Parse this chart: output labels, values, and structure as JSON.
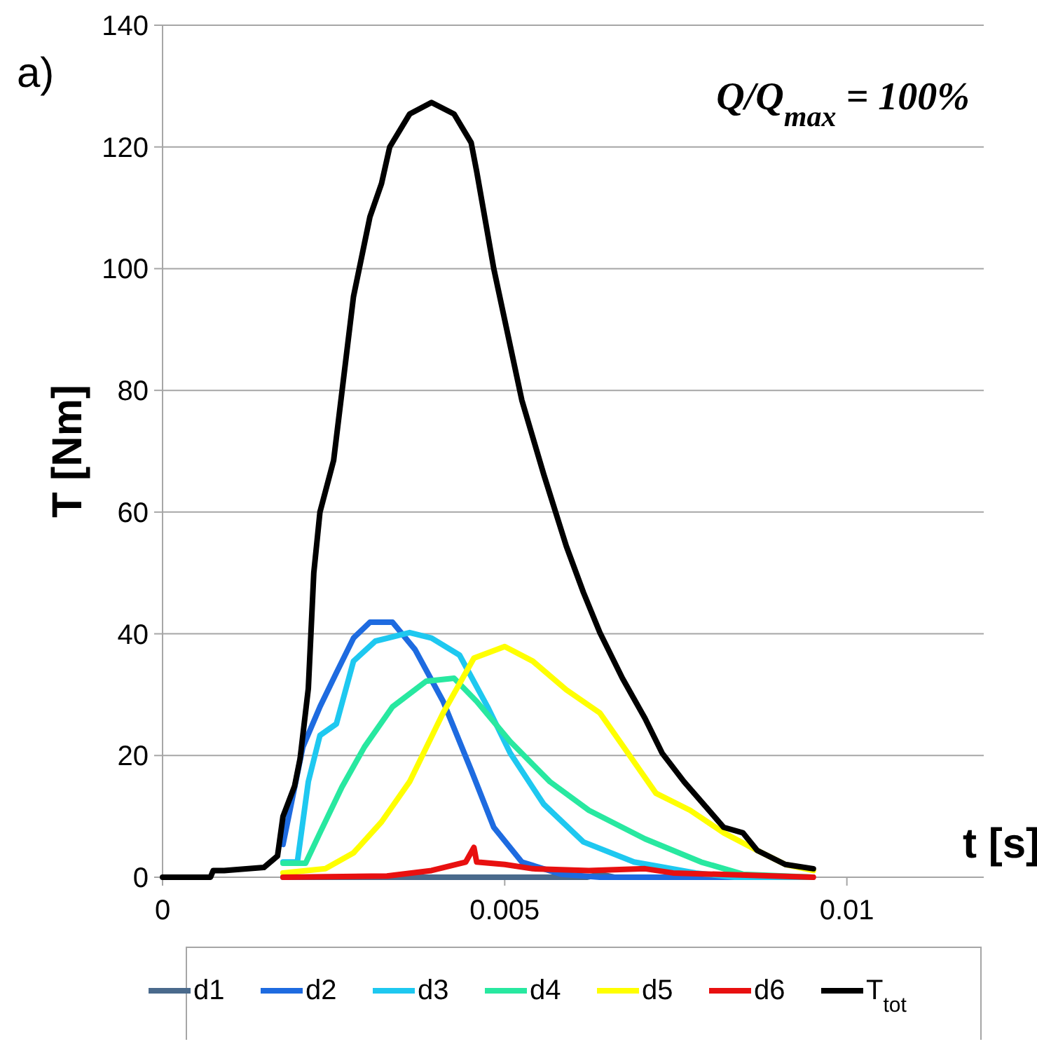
{
  "chart_data": {
    "type": "line",
    "xlabel": "t [s]",
    "ylabel": "T  [Nm]",
    "xlim": [
      0,
      0.012
    ],
    "xticks": [
      0,
      0.005,
      0.01
    ],
    "ylim": [
      0,
      140
    ],
    "yticks": [
      0,
      20,
      40,
      60,
      80,
      100,
      120,
      140
    ],
    "grid": "y",
    "legend": "bottom",
    "line_style": "solid",
    "marker": "none",
    "annotations": [
      "a)",
      "Q/Q$_{max}$ = 100%"
    ],
    "series": [
      {
        "name": "d1",
        "color": "#4a6a8c",
        "x": [
          0.00176,
          0.005,
          0.0062,
          0.0064,
          0.0066,
          0.0095
        ],
        "values": [
          0,
          0,
          0,
          0.5,
          0,
          0
        ]
      },
      {
        "name": "d2",
        "color": "#1e6be0",
        "x": [
          0.00176,
          0.00205,
          0.0023,
          0.00254,
          0.00279,
          0.00303,
          0.00336,
          0.00369,
          0.0041,
          0.00451,
          0.00484,
          0.00525,
          0.00582,
          0.00639,
          0.0095
        ],
        "values": [
          5.4,
          21.4,
          28,
          33.6,
          39.3,
          41.9,
          41.9,
          37.4,
          28.9,
          17.6,
          8.2,
          2.5,
          0.5,
          0,
          0
        ]
      },
      {
        "name": "d3",
        "color": "#1ec8f0",
        "x": [
          0.00176,
          0.00197,
          0.00213,
          0.0023,
          0.00254,
          0.00279,
          0.00311,
          0.00361,
          0.00393,
          0.00434,
          0.00475,
          0.00508,
          0.00557,
          0.00615,
          0.00689,
          0.00779,
          0.00836,
          0.0095
        ],
        "values": [
          2.5,
          2.5,
          15.7,
          23.3,
          25.2,
          35.5,
          38.8,
          40.2,
          39.3,
          36.5,
          28,
          20.4,
          12,
          5.8,
          2.5,
          0.7,
          0,
          0
        ]
      },
      {
        "name": "d4",
        "color": "#28e8a0",
        "x": [
          0.00176,
          0.00209,
          0.0023,
          0.00262,
          0.00295,
          0.00336,
          0.00385,
          0.00426,
          0.00459,
          0.00508,
          0.00566,
          0.00623,
          0.00705,
          0.00787,
          0.00848,
          0.0095
        ],
        "values": [
          2.3,
          2.3,
          7.3,
          14.8,
          21.4,
          28,
          32.2,
          32.7,
          28.9,
          22.3,
          15.7,
          11,
          6.3,
          2.5,
          0.5,
          0
        ]
      },
      {
        "name": "d5",
        "color": "#ffff00",
        "x": [
          0.00176,
          0.00238,
          0.00279,
          0.0032,
          0.00361,
          0.0041,
          0.00455,
          0.005,
          0.00541,
          0.0059,
          0.00639,
          0.0068,
          0.00721,
          0.00771,
          0.0082,
          0.00869,
          0.0091,
          0.00951
        ],
        "values": [
          0.7,
          1.4,
          4,
          9.1,
          15.7,
          27,
          36,
          37.9,
          35.5,
          30.8,
          27,
          20.4,
          13.8,
          11,
          7.3,
          4.4,
          2.1,
          1.1
        ]
      },
      {
        "name": "d6",
        "color": "#e81010",
        "x": [
          0.00176,
          0.00328,
          0.00393,
          0.00443,
          0.00455,
          0.00459,
          0.005,
          0.00541,
          0.00623,
          0.00705,
          0.00746,
          0.00951
        ],
        "values": [
          0,
          0.2,
          1.1,
          2.5,
          4.9,
          2.5,
          2.1,
          1.4,
          1.1,
          1.4,
          0.7,
          0
        ]
      },
      {
        "name": "T$_{tot}$",
        "color": "#000000",
        "x": [
          0,
          0.0007,
          0.00074,
          0.0009,
          0.00148,
          0.00168,
          0.00176,
          0.00193,
          0.00201,
          0.00213,
          0.00221,
          0.0023,
          0.0025,
          0.00279,
          0.00303,
          0.0032,
          0.00332,
          0.00361,
          0.00393,
          0.00426,
          0.00451,
          0.00459,
          0.00484,
          0.00525,
          0.00557,
          0.0059,
          0.00615,
          0.00639,
          0.00672,
          0.00705,
          0.0073,
          0.00762,
          0.0082,
          0.00848,
          0.00869,
          0.0091,
          0.00951
        ],
        "values": [
          0,
          0,
          1.1,
          1.1,
          1.6,
          3.5,
          10,
          15,
          19.5,
          31,
          50,
          60,
          68.5,
          95.4,
          108.5,
          114,
          120,
          125.4,
          127.3,
          125.4,
          120.7,
          116,
          100,
          78.4,
          66.2,
          54.4,
          46.8,
          40.2,
          32.7,
          26.1,
          20.4,
          15.7,
          8.2,
          7.3,
          4.4,
          2.1,
          1.4
        ]
      }
    ]
  }
}
